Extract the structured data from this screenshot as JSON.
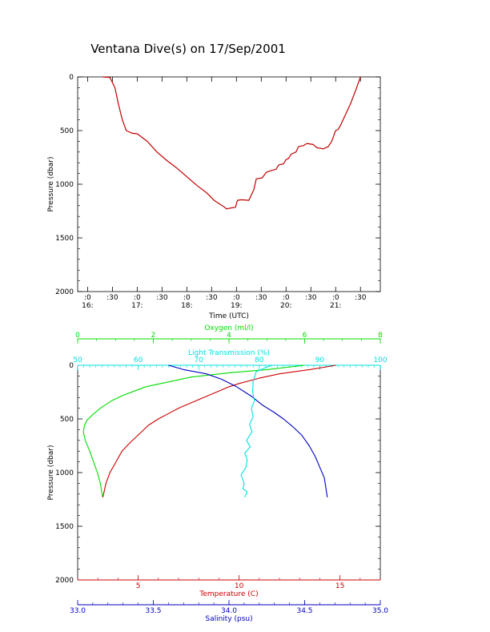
{
  "title": "Ventana Dive(s) on 17/Sep/2001",
  "chart_data": [
    {
      "type": "line",
      "xlabel": "Time (UTC)",
      "ylabel": "Pressure (dbar)",
      "x_unit": "hours UTC",
      "xlim": [
        15.8,
        21.9
      ],
      "ylim": [
        2000,
        0
      ],
      "x_ticks": [
        {
          "value": 16.0,
          "top": ":0",
          "bottom": "16:"
        },
        {
          "value": 16.5,
          "top": ":30",
          "bottom": ""
        },
        {
          "value": 17.0,
          "top": ":0",
          "bottom": "17:"
        },
        {
          "value": 17.5,
          "top": ":30",
          "bottom": ""
        },
        {
          "value": 18.0,
          "top": ":0",
          "bottom": "18:"
        },
        {
          "value": 18.5,
          "top": ":30",
          "bottom": ""
        },
        {
          "value": 19.0,
          "top": ":0",
          "bottom": "19:"
        },
        {
          "value": 19.5,
          "top": ":30",
          "bottom": ""
        },
        {
          "value": 20.0,
          "top": ":0",
          "bottom": "20:"
        },
        {
          "value": 20.5,
          "top": ":30",
          "bottom": ""
        },
        {
          "value": 21.0,
          "top": ":0",
          "bottom": "21:"
        },
        {
          "value": 21.5,
          "top": ":30",
          "bottom": ""
        }
      ],
      "y_ticks": [
        0,
        500,
        1000,
        1500,
        2000
      ],
      "series": [
        {
          "color": "#c00000",
          "x": [
            16.3,
            16.45,
            16.55,
            16.62,
            16.7,
            16.78,
            16.9,
            17.0,
            17.2,
            17.4,
            17.6,
            17.8,
            18.0,
            18.2,
            18.4,
            18.55,
            18.68,
            18.75,
            18.8,
            18.9,
            18.98,
            19.02,
            19.1,
            19.25,
            19.35,
            19.4,
            19.52,
            19.6,
            19.65,
            19.8,
            19.85,
            19.95,
            20.0,
            20.05,
            20.1,
            20.2,
            20.25,
            20.35,
            20.42,
            20.55,
            20.62,
            20.75,
            20.85,
            20.92,
            21.0,
            21.05,
            21.1,
            21.2,
            21.3,
            21.4,
            21.5
          ],
          "y": [
            0,
            5,
            100,
            250,
            400,
            500,
            525,
            530,
            600,
            700,
            780,
            850,
            930,
            1010,
            1080,
            1150,
            1190,
            1210,
            1230,
            1220,
            1215,
            1150,
            1145,
            1150,
            1050,
            950,
            940,
            890,
            880,
            860,
            820,
            810,
            770,
            760,
            720,
            700,
            650,
            640,
            620,
            630,
            660,
            670,
            650,
            600,
            500,
            490,
            450,
            350,
            250,
            130,
            0
          ]
        }
      ]
    },
    {
      "type": "line",
      "ylabel": "Pressure (dbar)",
      "ylim": [
        2000,
        0
      ],
      "y_ticks": [
        0,
        500,
        1000,
        1500,
        2000
      ],
      "axes": {
        "oxygen": {
          "label": "Oxygen (ml/l)",
          "color": "#00dd00",
          "lim": [
            0,
            8
          ],
          "ticks": [
            0,
            2,
            4,
            6,
            8
          ]
        },
        "light": {
          "label": "Light Transmission (%)",
          "color": "#00e0e0",
          "lim": [
            50,
            100
          ],
          "ticks": [
            50,
            60,
            70,
            80,
            90,
            100
          ]
        },
        "temperature": {
          "label": "Temperature (C)",
          "color": "#cc0000",
          "lim": [
            2,
            17
          ],
          "ticks": [
            5,
            10,
            15
          ]
        },
        "salinity": {
          "label": "Salinity (psu)",
          "color": "#0000c0",
          "lim": [
            33.0,
            35.0
          ],
          "ticks": [
            33.0,
            33.5,
            34.0,
            34.5,
            35.0
          ],
          "tick_labels": [
            "33.0",
            "33.5",
            "34.0",
            "34.5",
            "35.0"
          ]
        }
      },
      "series": [
        {
          "axis": "oxygen",
          "x": [
            6.0,
            5.0,
            4.0,
            3.5,
            3.0,
            2.6,
            2.2,
            1.8,
            1.5,
            1.2,
            0.9,
            0.6,
            0.4,
            0.25,
            0.18,
            0.15,
            0.2,
            0.32,
            0.42,
            0.52,
            0.6,
            0.66
          ],
          "y": [
            0,
            40,
            70,
            90,
            110,
            140,
            170,
            200,
            240,
            280,
            330,
            400,
            460,
            510,
            560,
            620,
            700,
            800,
            900,
            1000,
            1100,
            1230
          ]
        },
        {
          "axis": "temperature",
          "x": [
            14.8,
            13.5,
            12.0,
            11.0,
            10.0,
            9.5,
            9.0,
            8.5,
            8.0,
            7.5,
            7.0,
            6.5,
            6.0,
            5.5,
            5.0,
            4.6,
            4.2,
            3.9,
            3.6,
            3.4,
            3.25
          ],
          "y": [
            0,
            40,
            80,
            120,
            170,
            200,
            240,
            280,
            320,
            360,
            400,
            450,
            500,
            560,
            650,
            720,
            800,
            900,
            1000,
            1100,
            1230
          ]
        },
        {
          "axis": "salinity",
          "x": [
            33.6,
            33.7,
            33.85,
            33.95,
            34.05,
            34.15,
            34.22,
            34.3,
            34.36,
            34.42,
            34.48,
            34.53,
            34.57,
            34.6,
            34.63,
            34.65
          ],
          "y": [
            0,
            40,
            80,
            130,
            200,
            290,
            370,
            440,
            500,
            570,
            650,
            750,
            850,
            950,
            1050,
            1230
          ]
        },
        {
          "axis": "light",
          "x": [
            82.0,
            79.5,
            79.0,
            78.9,
            79.2,
            78.7,
            79.0,
            78.4,
            78.8,
            77.9,
            78.5,
            77.6,
            78.0,
            77.8,
            77.0,
            77.5,
            77.3,
            78.0,
            77.6
          ],
          "y": [
            0,
            60,
            150,
            250,
            330,
            400,
            480,
            550,
            620,
            700,
            760,
            820,
            880,
            950,
            1020,
            1100,
            1150,
            1180,
            1230
          ]
        }
      ]
    }
  ]
}
